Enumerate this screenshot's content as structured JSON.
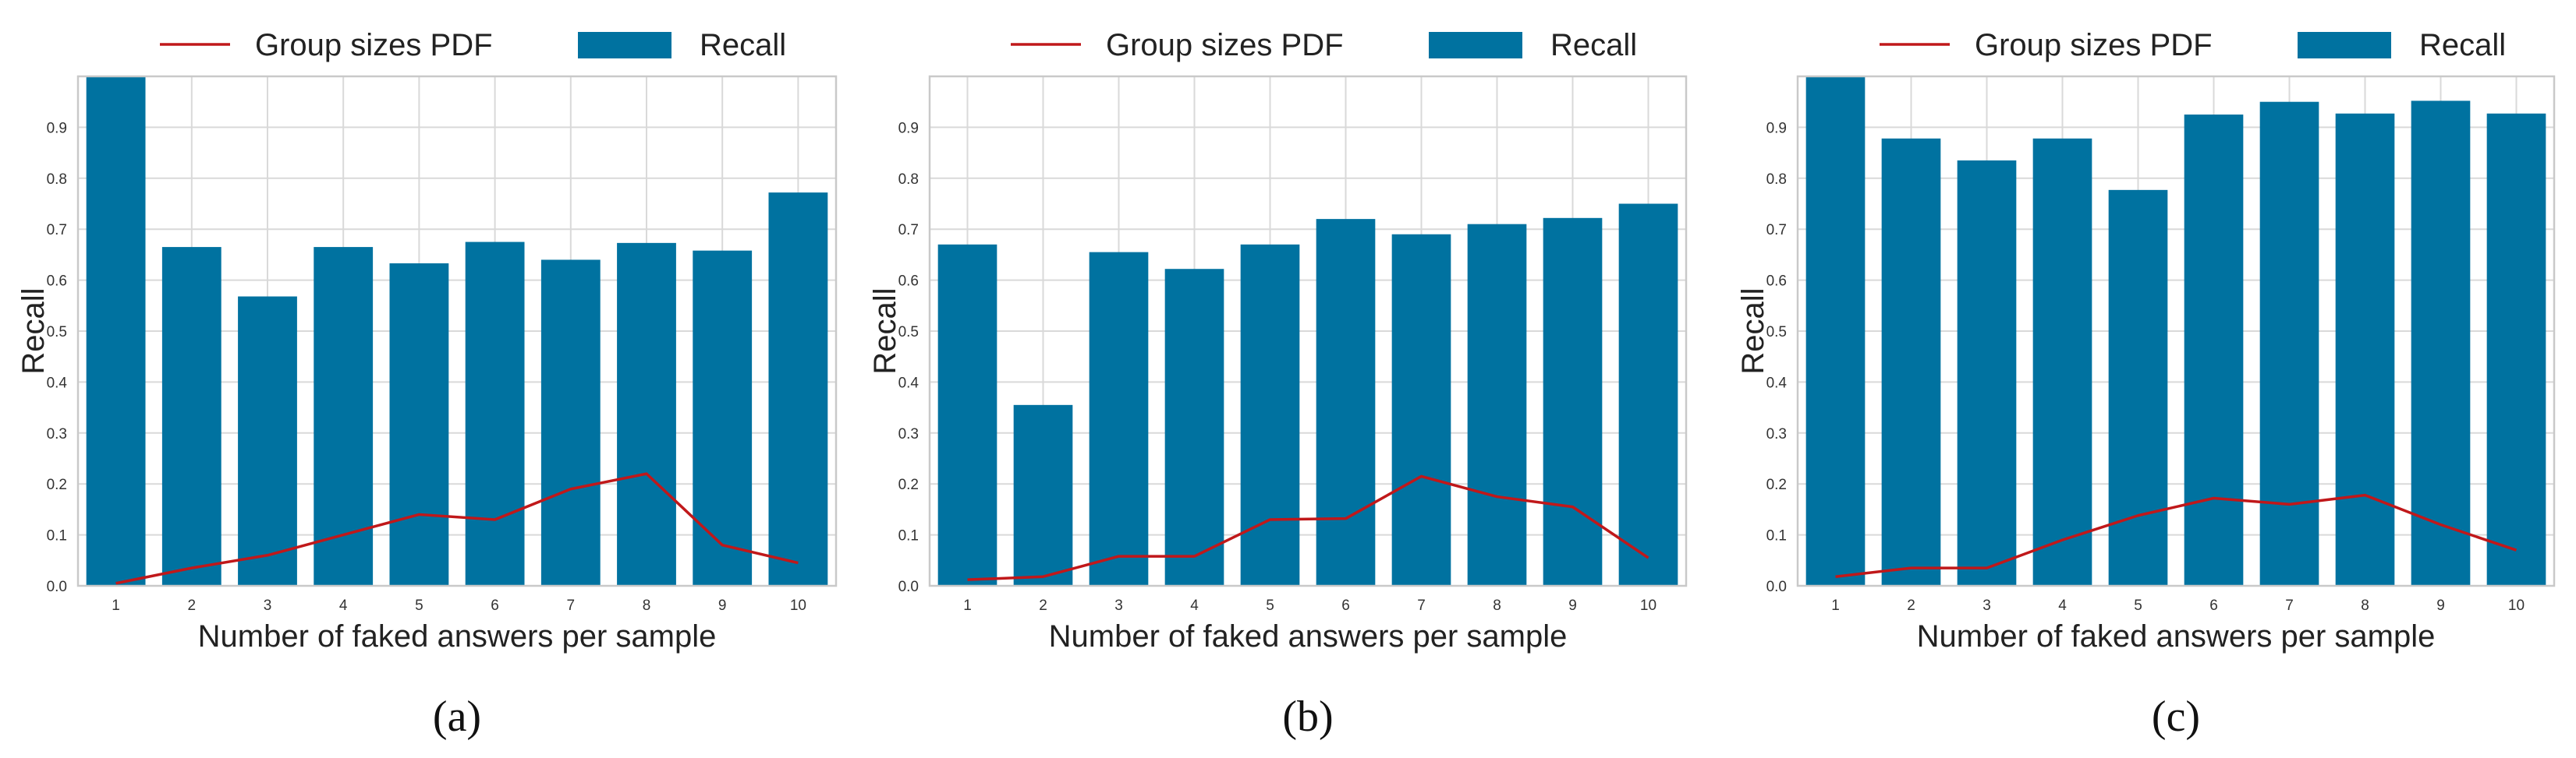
{
  "chart_data": [
    {
      "type": "bar",
      "panel_label": "(a)",
      "legend": {
        "line_label": "Group sizes PDF",
        "bar_label": "Recall",
        "placement": "top"
      },
      "xlabel": "Number of faked answers per sample",
      "ylabel": "Recall",
      "categories": [
        "1",
        "2",
        "3",
        "4",
        "5",
        "6",
        "7",
        "8",
        "9",
        "10"
      ],
      "series": [
        {
          "name": "Recall",
          "kind": "bar",
          "values": [
            1.0,
            0.665,
            0.568,
            0.665,
            0.633,
            0.675,
            0.64,
            0.673,
            0.658,
            0.772
          ]
        },
        {
          "name": "Group sizes PDF",
          "kind": "line",
          "values": [
            0.005,
            0.035,
            0.06,
            0.1,
            0.14,
            0.13,
            0.19,
            0.22,
            0.08,
            0.045
          ]
        }
      ],
      "ylim": [
        0,
        1.0
      ],
      "yticks": [
        "0.0",
        "0.1",
        "0.2",
        "0.3",
        "0.4",
        "0.5",
        "0.6",
        "0.7",
        "0.8",
        "0.9"
      ],
      "grid": true,
      "colors": {
        "bar": "#0072a0",
        "line": "#c0181a",
        "grid": "#d9d9d9",
        "frame": "#c9c9c9"
      }
    },
    {
      "type": "bar",
      "panel_label": "(b)",
      "legend": {
        "line_label": "Group sizes PDF",
        "bar_label": "Recall",
        "placement": "top"
      },
      "xlabel": "Number of faked answers per sample",
      "ylabel": "Recall",
      "categories": [
        "1",
        "2",
        "3",
        "4",
        "5",
        "6",
        "7",
        "8",
        "9",
        "10"
      ],
      "series": [
        {
          "name": "Recall",
          "kind": "bar",
          "values": [
            0.67,
            0.355,
            0.655,
            0.622,
            0.67,
            0.72,
            0.69,
            0.71,
            0.722,
            0.75
          ]
        },
        {
          "name": "Group sizes PDF",
          "kind": "line",
          "values": [
            0.012,
            0.018,
            0.058,
            0.058,
            0.13,
            0.132,
            0.215,
            0.175,
            0.155,
            0.055
          ]
        }
      ],
      "ylim": [
        0,
        1.0
      ],
      "yticks": [
        "0.0",
        "0.1",
        "0.2",
        "0.3",
        "0.4",
        "0.5",
        "0.6",
        "0.7",
        "0.8",
        "0.9"
      ],
      "grid": true,
      "colors": {
        "bar": "#0072a0",
        "line": "#c0181a",
        "grid": "#d9d9d9",
        "frame": "#c9c9c9"
      }
    },
    {
      "type": "bar",
      "panel_label": "(c)",
      "legend": {
        "line_label": "Group sizes PDF",
        "bar_label": "Recall",
        "placement": "top"
      },
      "xlabel": "Number of faked answers per sample",
      "ylabel": "Recall",
      "categories": [
        "1",
        "2",
        "3",
        "4",
        "5",
        "6",
        "7",
        "8",
        "9",
        "10"
      ],
      "series": [
        {
          "name": "Recall",
          "kind": "bar",
          "values": [
            1.0,
            0.878,
            0.835,
            0.878,
            0.777,
            0.925,
            0.95,
            0.927,
            0.952,
            0.927
          ]
        },
        {
          "name": "Group sizes PDF",
          "kind": "line",
          "values": [
            0.018,
            0.035,
            0.035,
            0.09,
            0.138,
            0.172,
            0.16,
            0.178,
            0.12,
            0.07
          ]
        }
      ],
      "ylim": [
        0,
        1.0
      ],
      "yticks": [
        "0.0",
        "0.1",
        "0.2",
        "0.3",
        "0.4",
        "0.5",
        "0.6",
        "0.7",
        "0.8",
        "0.9"
      ],
      "grid": true,
      "colors": {
        "bar": "#0072a0",
        "line": "#c0181a",
        "grid": "#d9d9d9",
        "frame": "#c9c9c9"
      }
    }
  ]
}
